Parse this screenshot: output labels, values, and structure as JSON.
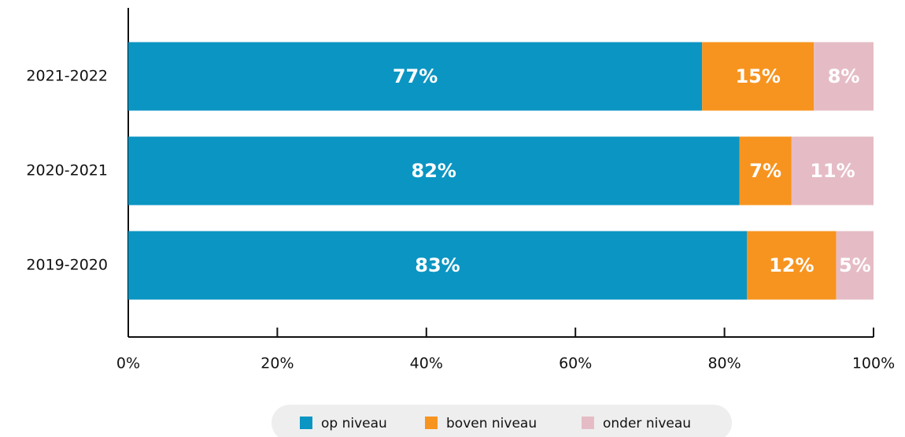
{
  "chart_data": {
    "type": "stacked-barh",
    "categories": [
      "2021-2022",
      "2020-2021",
      "2019-2020"
    ],
    "series": [
      {
        "name": "op niveau",
        "color": "#0b95c3",
        "values": [
          77,
          82,
          83
        ],
        "value_labels": [
          "77%",
          "82%",
          "83%"
        ]
      },
      {
        "name": "boven niveau",
        "color": "#f7941f",
        "values": [
          15,
          7,
          12
        ],
        "value_labels": [
          "15%",
          "7%",
          "12%"
        ]
      },
      {
        "name": "onder niveau",
        "color": "#e5bcc6",
        "values": [
          8,
          11,
          5
        ],
        "value_labels": [
          "8%",
          "11%",
          "5%"
        ]
      }
    ],
    "xlim": [
      0,
      100
    ],
    "xticks": [
      {
        "value": 0,
        "label": "0%"
      },
      {
        "value": 20,
        "label": "20%"
      },
      {
        "value": 40,
        "label": "40%"
      },
      {
        "value": 60,
        "label": "60%"
      },
      {
        "value": 80,
        "label": "80%"
      },
      {
        "value": 100,
        "label": "100%"
      }
    ],
    "legend": "bottom"
  }
}
